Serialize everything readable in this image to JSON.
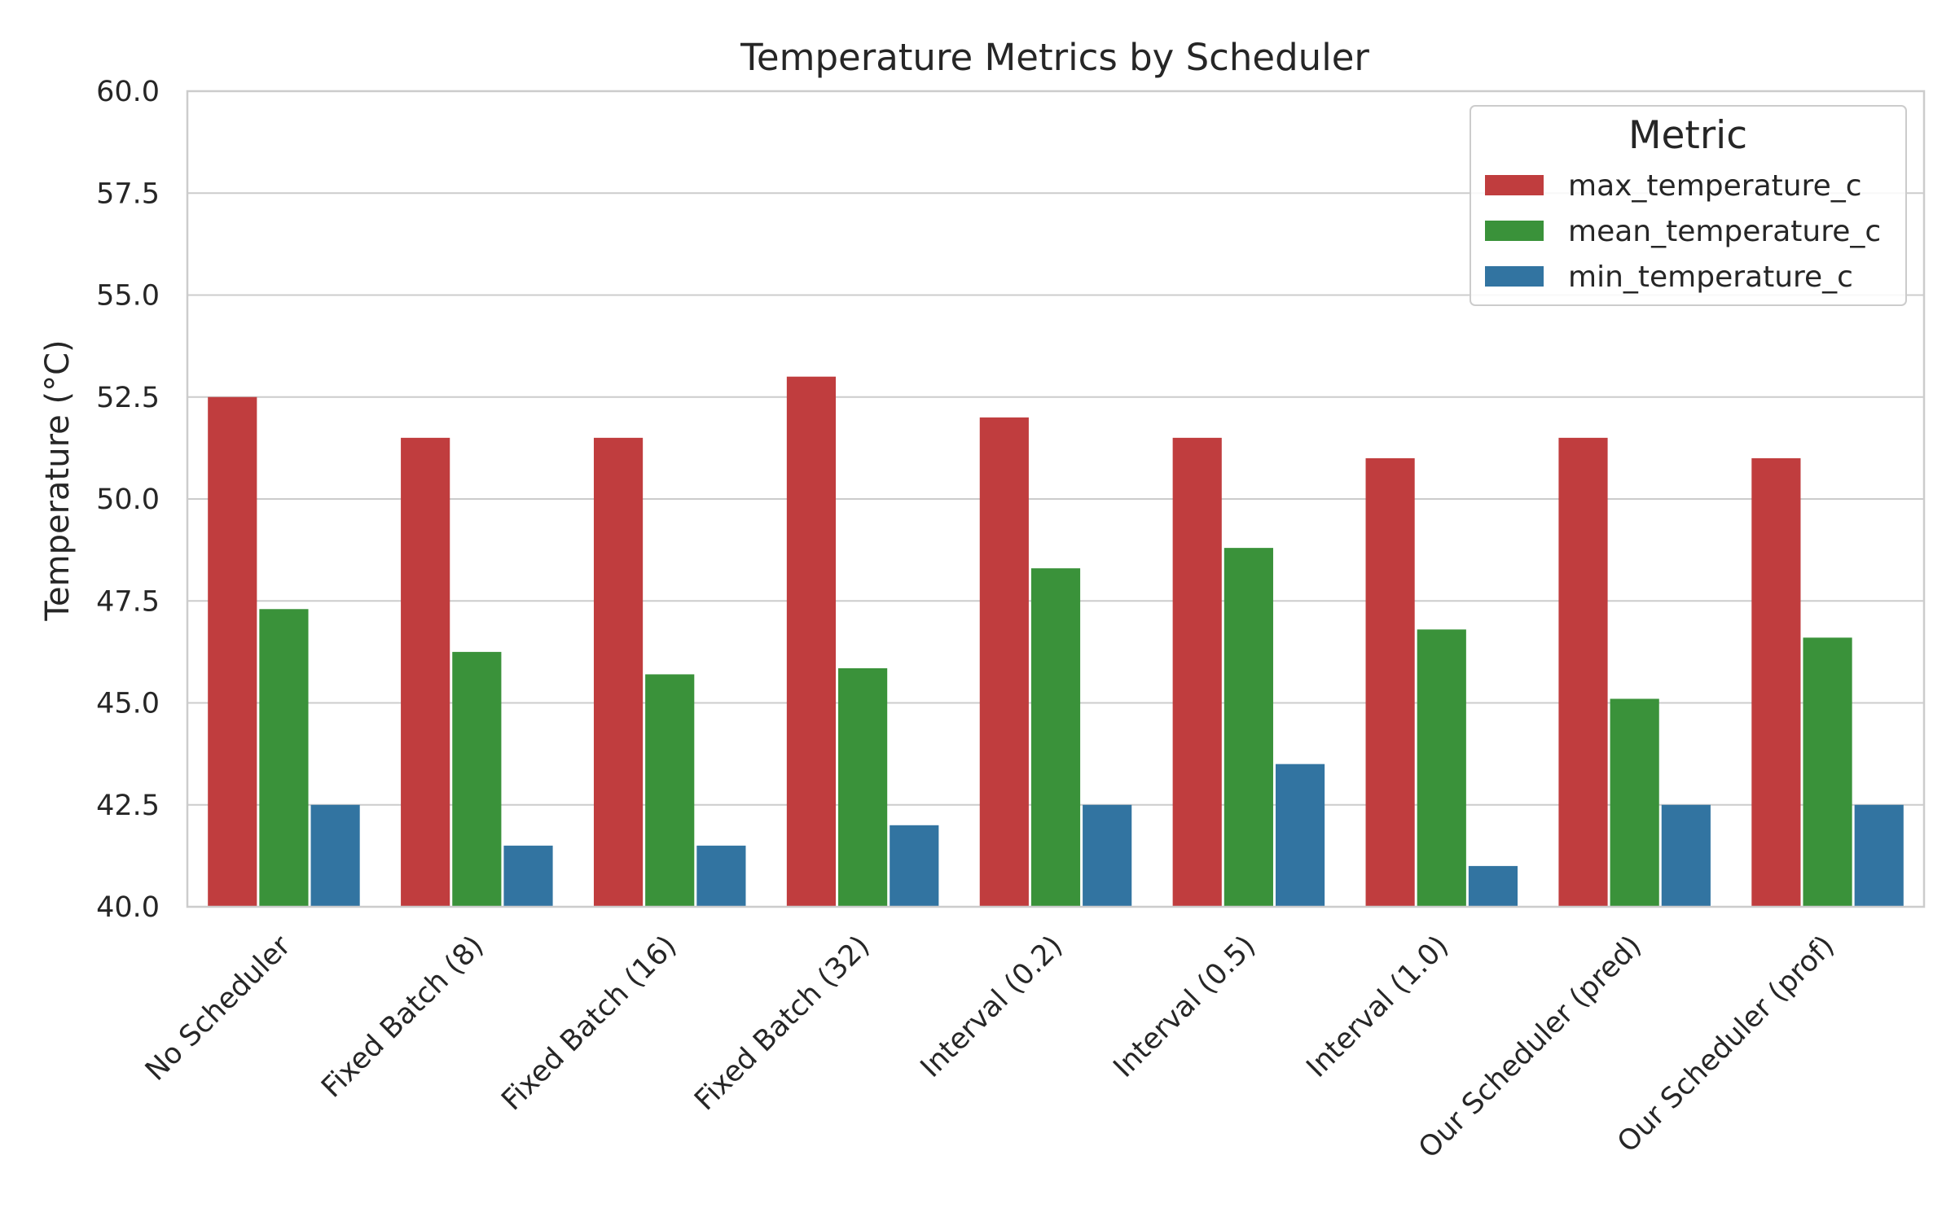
{
  "chart_data": {
    "type": "bar",
    "title": "Temperature Metrics by Scheduler",
    "xlabel": "",
    "ylabel": "Temperature (°C)",
    "ylim": [
      40.0,
      60.0
    ],
    "yticks": [
      "40.0",
      "42.5",
      "45.0",
      "47.5",
      "50.0",
      "52.5",
      "55.0",
      "57.5",
      "60.0"
    ],
    "grid": true,
    "legend": {
      "title": "Metric",
      "position": "top-right"
    },
    "categories": [
      "No Scheduler",
      "Fixed Batch (8)",
      "Fixed Batch (16)",
      "Fixed Batch (32)",
      "Interval (0.2)",
      "Interval (0.5)",
      "Interval (1.0)",
      "Our Scheduler (pred)",
      "Our Scheduler (prof)"
    ],
    "series": [
      {
        "name": "max_temperature_c",
        "color": "#c03d3e",
        "values": [
          52.5,
          51.5,
          51.5,
          53.0,
          52.0,
          51.5,
          51.0,
          51.5,
          51.0
        ]
      },
      {
        "name": "mean_temperature_c",
        "color": "#3a923a",
        "values": [
          47.3,
          46.25,
          45.7,
          45.85,
          48.3,
          48.8,
          46.8,
          45.1,
          46.6
        ]
      },
      {
        "name": "min_temperature_c",
        "color": "#3274a1",
        "values": [
          42.5,
          41.5,
          41.5,
          42.0,
          42.5,
          43.5,
          41.0,
          42.5,
          42.5
        ]
      }
    ]
  }
}
